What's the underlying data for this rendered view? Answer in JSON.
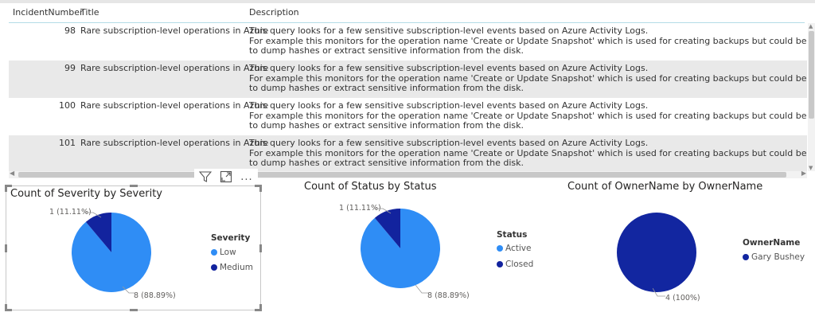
{
  "table": {
    "headers": [
      "IncidentNumber",
      "Title",
      "Description"
    ],
    "rows": [
      {
        "number": "98",
        "title": "Rare subscription-level operations in Azure",
        "desc1": "This query looks for a few sensitive subscription-level events based on Azure Activity Logs.",
        "desc2": "For example this monitors for the operation name 'Create or Update Snapshot' which is used for creating backups but could be misused by attackers",
        "desc3": "to dump hashes or extract sensitive information from the disk."
      },
      {
        "number": "99",
        "title": "Rare subscription-level operations in Azure",
        "desc1": "This query looks for a few sensitive subscription-level events based on Azure Activity Logs.",
        "desc2": "For example this monitors for the operation name 'Create or Update Snapshot' which is used for creating backups but could be misused by attackers",
        "desc3": "to dump hashes or extract sensitive information from the disk."
      },
      {
        "number": "100",
        "title": "Rare subscription-level operations in Azure",
        "desc1": "This query looks for a few sensitive subscription-level events based on Azure Activity Logs.",
        "desc2": "For example this monitors for the operation name 'Create or Update Snapshot' which is used for creating backups but could be misused by attackers",
        "desc3": "to dump hashes or extract sensitive information from the disk."
      },
      {
        "number": "101",
        "title": "Rare subscription-level operations in Azure",
        "desc1": "This query looks for a few sensitive subscription-level events based on Azure Activity Logs.",
        "desc2": "For example this monitors for the operation name 'Create or Update Snapshot' which is used for creating backups but could be misused by attackers",
        "desc3": "to dump hashes or extract sensitive information from the disk."
      }
    ]
  },
  "visual_icons": [
    "filter-icon",
    "focus-mode-icon",
    "more-options-icon"
  ],
  "more_label": "...",
  "colors": {
    "light_blue": "#2f8df5",
    "dark_blue": "#12239e",
    "navy": "#1226a0"
  },
  "charts": [
    {
      "title": "Count of Severity by Severity",
      "legend_title": "Severity",
      "slices": [
        {
          "name": "Low",
          "value": 8,
          "label": "8 (88.89%)",
          "color": "#2f8df5"
        },
        {
          "name": "Medium",
          "value": 1,
          "label": "1 (11.11%)",
          "color": "#12239e"
        }
      ]
    },
    {
      "title": "Count of Status by Status",
      "legend_title": "Status",
      "slices": [
        {
          "name": "Active",
          "value": 8,
          "label": "8 (88.89%)",
          "color": "#2f8df5"
        },
        {
          "name": "Closed",
          "value": 1,
          "label": "1 (11.11%)",
          "color": "#12239e"
        }
      ]
    },
    {
      "title": "Count of OwnerName by OwnerName",
      "legend_title": "OwnerName",
      "slices": [
        {
          "name": "Gary Bushey",
          "value": 4,
          "label": "4 (100%)",
          "color": "#1226a0"
        }
      ]
    }
  ],
  "chart_data": [
    {
      "type": "pie",
      "title": "Count of Severity by Severity",
      "categories": [
        "Low",
        "Medium"
      ],
      "values": [
        8,
        1
      ],
      "labels": [
        "8 (88.89%)",
        "1 (11.11%)"
      ],
      "legend_title": "Severity",
      "legend": "right"
    },
    {
      "type": "pie",
      "title": "Count of Status by Status",
      "categories": [
        "Active",
        "Closed"
      ],
      "values": [
        8,
        1
      ],
      "labels": [
        "8 (88.89%)",
        "1 (11.11%)"
      ],
      "legend_title": "Status",
      "legend": "right"
    },
    {
      "type": "pie",
      "title": "Count of OwnerName by OwnerName",
      "categories": [
        "Gary Bushey"
      ],
      "values": [
        4
      ],
      "labels": [
        "4 (100%)"
      ],
      "legend_title": "OwnerName",
      "legend": "right"
    }
  ]
}
